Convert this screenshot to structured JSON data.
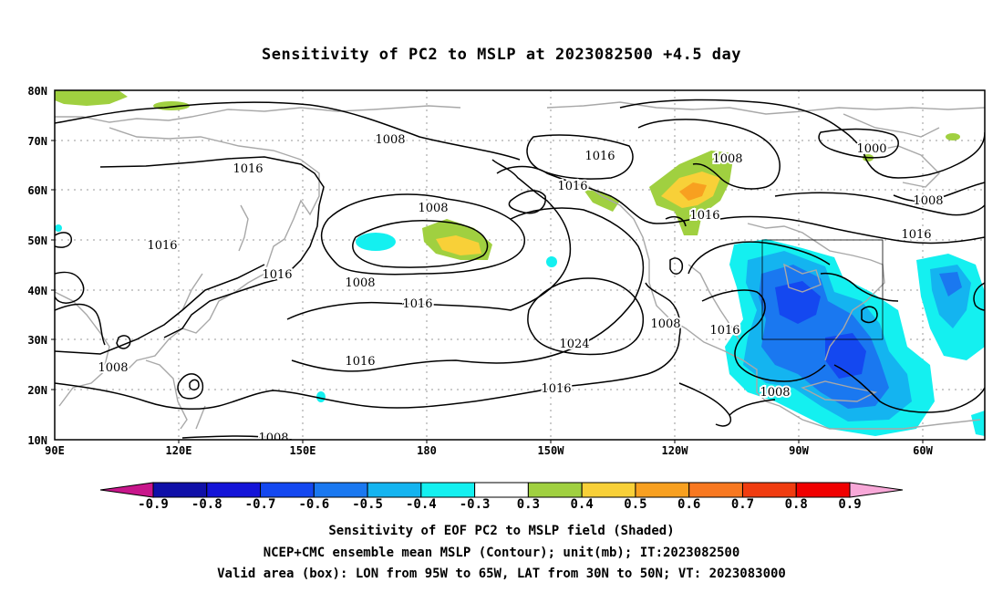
{
  "title": "Sensitivity of PC2 to MSLP at 2023082500 +4.5 day",
  "lat_ticks": [
    "80N",
    "70N",
    "60N",
    "50N",
    "40N",
    "30N",
    "20N",
    "10N"
  ],
  "lon_ticks": [
    "90E",
    "120E",
    "150E",
    "180",
    "150W",
    "120W",
    "90W",
    "60W"
  ],
  "contour_labels": {
    "c1": "1008",
    "c2": "1016",
    "c3": "1016",
    "c4": "1008",
    "c5": "1016",
    "c6": "1016",
    "c7": "1008",
    "c8": "1016",
    "c9": "1016",
    "c10": "1024",
    "c11": "1016",
    "c12": "1008",
    "c13": "1016",
    "c14": "1008",
    "c15": "1008",
    "c16": "1016",
    "c17": "1008",
    "c18": "1000",
    "c19": "1008",
    "c20": "1016",
    "c21": "1008",
    "c22": "1016"
  },
  "colorbar": {
    "labels": [
      "-0.9",
      "-0.8",
      "-0.7",
      "-0.6",
      "-0.5",
      "-0.4",
      "-0.3",
      "0.3",
      "0.4",
      "0.5",
      "0.6",
      "0.7",
      "0.8",
      "0.9"
    ],
    "colors": {
      "lowest": "#c8168b",
      "bins": [
        "#1010a8",
        "#1414d8",
        "#1448f0",
        "#1a78f0",
        "#14b4f0",
        "#14f0f0",
        "#ffffff",
        "#a0d040",
        "#f8d038",
        "#f8a020",
        "#f87820",
        "#f03c10",
        "#f00000"
      ],
      "highest": "#f8a8d8"
    }
  },
  "captions": {
    "line1": "Sensitivity of EOF PC2 to MSLP field (Shaded)",
    "line2": "NCEP+CMC ensemble mean MSLP (Contour); unit(mb); IT:2023082500",
    "line3": "Valid area (box): LON from 95W to 65W, LAT from 30N to 50N; VT: 2023083000"
  },
  "valid_box": {
    "lon_west": -95,
    "lon_east": -65,
    "lat_south": 30,
    "lat_north": 50
  }
}
